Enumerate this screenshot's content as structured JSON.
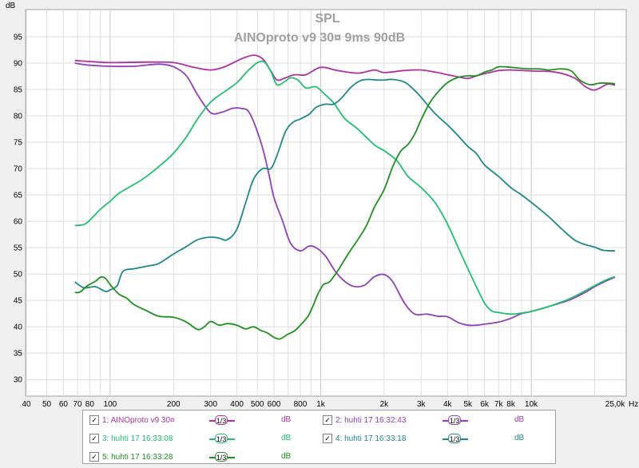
{
  "chart_data": {
    "type": "line",
    "title": "SPL",
    "subtitle": "AINOproto v9 30¤ 9ms 90dB",
    "ylabel": "dB",
    "xlabel_unit": "Hz",
    "x_scale": "log",
    "xlim": [
      40,
      28000
    ],
    "ylim": [
      27,
      100
    ],
    "grid": true,
    "y_ticks": [
      30,
      35,
      40,
      45,
      50,
      55,
      60,
      65,
      70,
      75,
      80,
      85,
      90,
      95
    ],
    "x_ticks": [
      {
        "v": 40,
        "label": "40"
      },
      {
        "v": 50,
        "label": "50"
      },
      {
        "v": 60,
        "label": "60"
      },
      {
        "v": 70,
        "label": "70"
      },
      {
        "v": 80,
        "label": "80"
      },
      {
        "v": 100,
        "label": "100"
      },
      {
        "v": 200,
        "label": "200"
      },
      {
        "v": 300,
        "label": "300"
      },
      {
        "v": 400,
        "label": "400"
      },
      {
        "v": 500,
        "label": "500"
      },
      {
        "v": 600,
        "label": "600"
      },
      {
        "v": 800,
        "label": "800"
      },
      {
        "v": 1000,
        "label": "1k"
      },
      {
        "v": 2000,
        "label": "2k"
      },
      {
        "v": 3000,
        "label": "3k"
      },
      {
        "v": 4000,
        "label": "4k"
      },
      {
        "v": 5000,
        "label": "5k"
      },
      {
        "v": 6000,
        "label": "6k"
      },
      {
        "v": 7000,
        "label": "7k"
      },
      {
        "v": 8000,
        "label": "8k"
      },
      {
        "v": 10000,
        "label": "10k"
      },
      {
        "v": 25000,
        "label": "25,0k"
      }
    ],
    "series": [
      {
        "name": "1: AINOproto v9 30¤",
        "color": "#b030a0",
        "smoothing": "1/3",
        "unit": "dB",
        "points": [
          [
            68,
            90.5
          ],
          [
            80,
            90.3
          ],
          [
            100,
            90.1
          ],
          [
            150,
            90.2
          ],
          [
            200,
            90.1
          ],
          [
            250,
            89.2
          ],
          [
            300,
            88.7
          ],
          [
            350,
            89.3
          ],
          [
            420,
            90.8
          ],
          [
            480,
            91.5
          ],
          [
            530,
            90.8
          ],
          [
            580,
            88.5
          ],
          [
            620,
            86.8
          ],
          [
            680,
            87.2
          ],
          [
            750,
            87.8
          ],
          [
            850,
            87.8
          ],
          [
            1000,
            89.2
          ],
          [
            1200,
            88.6
          ],
          [
            1500,
            88.1
          ],
          [
            1800,
            88.7
          ],
          [
            2000,
            88.2
          ],
          [
            2500,
            88.6
          ],
          [
            3000,
            88.7
          ],
          [
            3500,
            88.3
          ],
          [
            4000,
            87.8
          ],
          [
            4500,
            87.4
          ],
          [
            5000,
            87.1
          ],
          [
            5500,
            87.6
          ],
          [
            6000,
            88.0
          ],
          [
            6500,
            88.3
          ],
          [
            7000,
            88.6
          ],
          [
            8000,
            88.7
          ],
          [
            10000,
            88.5
          ],
          [
            13000,
            88.3
          ],
          [
            16000,
            87.2
          ],
          [
            18000,
            85.6
          ],
          [
            20000,
            84.9
          ],
          [
            23000,
            86.0
          ],
          [
            25000,
            85.8
          ]
        ]
      },
      {
        "name": "2: huhti 17 16:32:43",
        "color": "#9040b8",
        "smoothing": "1/3",
        "unit": "dB",
        "points": [
          [
            68,
            90.0
          ],
          [
            80,
            89.6
          ],
          [
            100,
            89.4
          ],
          [
            130,
            89.4
          ],
          [
            170,
            89.8
          ],
          [
            200,
            89.3
          ],
          [
            230,
            87.6
          ],
          [
            260,
            84.0
          ],
          [
            300,
            80.6
          ],
          [
            340,
            80.7
          ],
          [
            380,
            81.4
          ],
          [
            420,
            81.4
          ],
          [
            460,
            80.5
          ],
          [
            520,
            75.0
          ],
          [
            560,
            70.0
          ],
          [
            600,
            64.5
          ],
          [
            660,
            60.0
          ],
          [
            720,
            55.8
          ],
          [
            800,
            54.4
          ],
          [
            880,
            55.3
          ],
          [
            950,
            55.0
          ],
          [
            1050,
            53.5
          ],
          [
            1200,
            50.0
          ],
          [
            1400,
            47.8
          ],
          [
            1600,
            47.8
          ],
          [
            1800,
            49.5
          ],
          [
            2000,
            49.9
          ],
          [
            2200,
            48.5
          ],
          [
            2500,
            44.5
          ],
          [
            2800,
            42.4
          ],
          [
            3200,
            42.4
          ],
          [
            3600,
            42.0
          ],
          [
            4000,
            41.9
          ],
          [
            4500,
            40.8
          ],
          [
            5000,
            40.3
          ],
          [
            5500,
            40.3
          ],
          [
            6000,
            40.5
          ],
          [
            7000,
            40.9
          ],
          [
            8000,
            41.6
          ],
          [
            9000,
            42.5
          ],
          [
            10000,
            42.9
          ],
          [
            12000,
            43.8
          ],
          [
            15000,
            45.0
          ],
          [
            18000,
            46.5
          ],
          [
            20000,
            47.6
          ],
          [
            23000,
            48.8
          ],
          [
            25000,
            49.4
          ]
        ]
      },
      {
        "name": "3: huhti 17 16:33:08",
        "color": "#20c070",
        "smoothing": "1/3",
        "unit": "dB",
        "points": [
          [
            68,
            59.2
          ],
          [
            75,
            59.4
          ],
          [
            80,
            60.2
          ],
          [
            90,
            62.3
          ],
          [
            100,
            63.8
          ],
          [
            110,
            65.3
          ],
          [
            130,
            67.0
          ],
          [
            150,
            68.6
          ],
          [
            180,
            71.2
          ],
          [
            200,
            72.9
          ],
          [
            230,
            76.0
          ],
          [
            260,
            79.4
          ],
          [
            300,
            82.6
          ],
          [
            350,
            84.6
          ],
          [
            400,
            86.3
          ],
          [
            450,
            88.5
          ],
          [
            500,
            90.1
          ],
          [
            540,
            90.2
          ],
          [
            580,
            88.4
          ],
          [
            620,
            85.9
          ],
          [
            680,
            86.6
          ],
          [
            720,
            87.2
          ],
          [
            780,
            86.8
          ],
          [
            850,
            85.3
          ],
          [
            950,
            85.5
          ],
          [
            1050,
            84.0
          ],
          [
            1150,
            82.5
          ],
          [
            1300,
            79.5
          ],
          [
            1500,
            77.5
          ],
          [
            1800,
            74.5
          ],
          [
            2000,
            73.4
          ],
          [
            2300,
            71.5
          ],
          [
            2600,
            68.5
          ],
          [
            3000,
            66.4
          ],
          [
            3500,
            63.5
          ],
          [
            4000,
            59.5
          ],
          [
            4500,
            55.0
          ],
          [
            5000,
            51.0
          ],
          [
            5500,
            47.5
          ],
          [
            6000,
            44.5
          ],
          [
            6500,
            43.0
          ],
          [
            7000,
            42.7
          ],
          [
            8000,
            42.4
          ],
          [
            9000,
            42.6
          ],
          [
            10000,
            42.9
          ],
          [
            12000,
            43.8
          ],
          [
            15000,
            45.2
          ],
          [
            18000,
            46.8
          ],
          [
            20000,
            47.8
          ],
          [
            23000,
            49.0
          ],
          [
            25000,
            49.5
          ]
        ]
      },
      {
        "name": "4: huhti 17 16:33:18",
        "color": "#208888",
        "smoothing": "1/3",
        "unit": "dB",
        "points": [
          [
            68,
            48.5
          ],
          [
            75,
            47.4
          ],
          [
            85,
            47.6
          ],
          [
            95,
            46.7
          ],
          [
            100,
            47.0
          ],
          [
            108,
            47.8
          ],
          [
            115,
            50.5
          ],
          [
            130,
            51.0
          ],
          [
            150,
            51.5
          ],
          [
            170,
            52.0
          ],
          [
            200,
            53.8
          ],
          [
            230,
            55.2
          ],
          [
            260,
            56.5
          ],
          [
            300,
            57.0
          ],
          [
            330,
            56.8
          ],
          [
            360,
            56.5
          ],
          [
            400,
            58.5
          ],
          [
            440,
            63.5
          ],
          [
            480,
            68.0
          ],
          [
            530,
            70.0
          ],
          [
            580,
            70.0
          ],
          [
            620,
            72.5
          ],
          [
            680,
            77.0
          ],
          [
            740,
            78.8
          ],
          [
            800,
            79.4
          ],
          [
            880,
            80.3
          ],
          [
            950,
            81.6
          ],
          [
            1050,
            82.2
          ],
          [
            1150,
            82.2
          ],
          [
            1250,
            83.3
          ],
          [
            1400,
            85.5
          ],
          [
            1550,
            86.7
          ],
          [
            1700,
            86.9
          ],
          [
            1850,
            86.8
          ],
          [
            2000,
            86.8
          ],
          [
            2200,
            86.9
          ],
          [
            2500,
            86.4
          ],
          [
            2800,
            84.8
          ],
          [
            3000,
            83.5
          ],
          [
            3500,
            80.4
          ],
          [
            4000,
            78.3
          ],
          [
            4500,
            76.2
          ],
          [
            5000,
            74.2
          ],
          [
            5500,
            72.8
          ],
          [
            6000,
            70.7
          ],
          [
            7000,
            68.5
          ],
          [
            8000,
            66.4
          ],
          [
            9000,
            65.0
          ],
          [
            10000,
            63.6
          ],
          [
            12000,
            61.0
          ],
          [
            14000,
            58.5
          ],
          [
            16000,
            56.5
          ],
          [
            18000,
            55.6
          ],
          [
            20000,
            55.1
          ],
          [
            22000,
            54.5
          ],
          [
            25000,
            54.4
          ]
        ]
      },
      {
        "name": "5: huhti 17 16:33:28",
        "color": "#209020",
        "smoothing": "1/3",
        "unit": "dB",
        "points": [
          [
            68,
            46.5
          ],
          [
            72,
            46.6
          ],
          [
            78,
            47.8
          ],
          [
            85,
            48.6
          ],
          [
            90,
            49.4
          ],
          [
            95,
            49.2
          ],
          [
            100,
            48.0
          ],
          [
            110,
            46.2
          ],
          [
            120,
            45.4
          ],
          [
            130,
            44.2
          ],
          [
            150,
            43.0
          ],
          [
            170,
            42.0
          ],
          [
            200,
            41.8
          ],
          [
            230,
            40.9
          ],
          [
            260,
            39.5
          ],
          [
            280,
            40.0
          ],
          [
            300,
            41.0
          ],
          [
            330,
            40.3
          ],
          [
            360,
            40.6
          ],
          [
            400,
            40.3
          ],
          [
            440,
            39.6
          ],
          [
            480,
            40.0
          ],
          [
            520,
            39.3
          ],
          [
            560,
            38.8
          ],
          [
            600,
            38.0
          ],
          [
            640,
            37.7
          ],
          [
            700,
            38.6
          ],
          [
            750,
            39.2
          ],
          [
            800,
            40.3
          ],
          [
            870,
            42.0
          ],
          [
            920,
            44.0
          ],
          [
            970,
            46.2
          ],
          [
            1030,
            48.0
          ],
          [
            1100,
            48.5
          ],
          [
            1200,
            50.5
          ],
          [
            1350,
            53.8
          ],
          [
            1500,
            56.5
          ],
          [
            1650,
            59.2
          ],
          [
            1800,
            62.7
          ],
          [
            2000,
            66.0
          ],
          [
            2200,
            70.4
          ],
          [
            2400,
            73.3
          ],
          [
            2600,
            74.6
          ],
          [
            2800,
            76.6
          ],
          [
            3000,
            79.3
          ],
          [
            3300,
            82.5
          ],
          [
            3600,
            84.5
          ],
          [
            4000,
            86.3
          ],
          [
            4500,
            87.3
          ],
          [
            5000,
            87.6
          ],
          [
            5500,
            87.6
          ],
          [
            6000,
            88.3
          ],
          [
            6500,
            88.7
          ],
          [
            7000,
            89.3
          ],
          [
            8000,
            89.2
          ],
          [
            9000,
            89.0
          ],
          [
            10000,
            88.9
          ],
          [
            11000,
            88.9
          ],
          [
            12000,
            88.7
          ],
          [
            14000,
            88.9
          ],
          [
            15500,
            88.5
          ],
          [
            17000,
            86.8
          ],
          [
            19000,
            85.9
          ],
          [
            21000,
            86.2
          ],
          [
            23000,
            86.2
          ],
          [
            25000,
            86.1
          ]
        ]
      }
    ]
  }
}
